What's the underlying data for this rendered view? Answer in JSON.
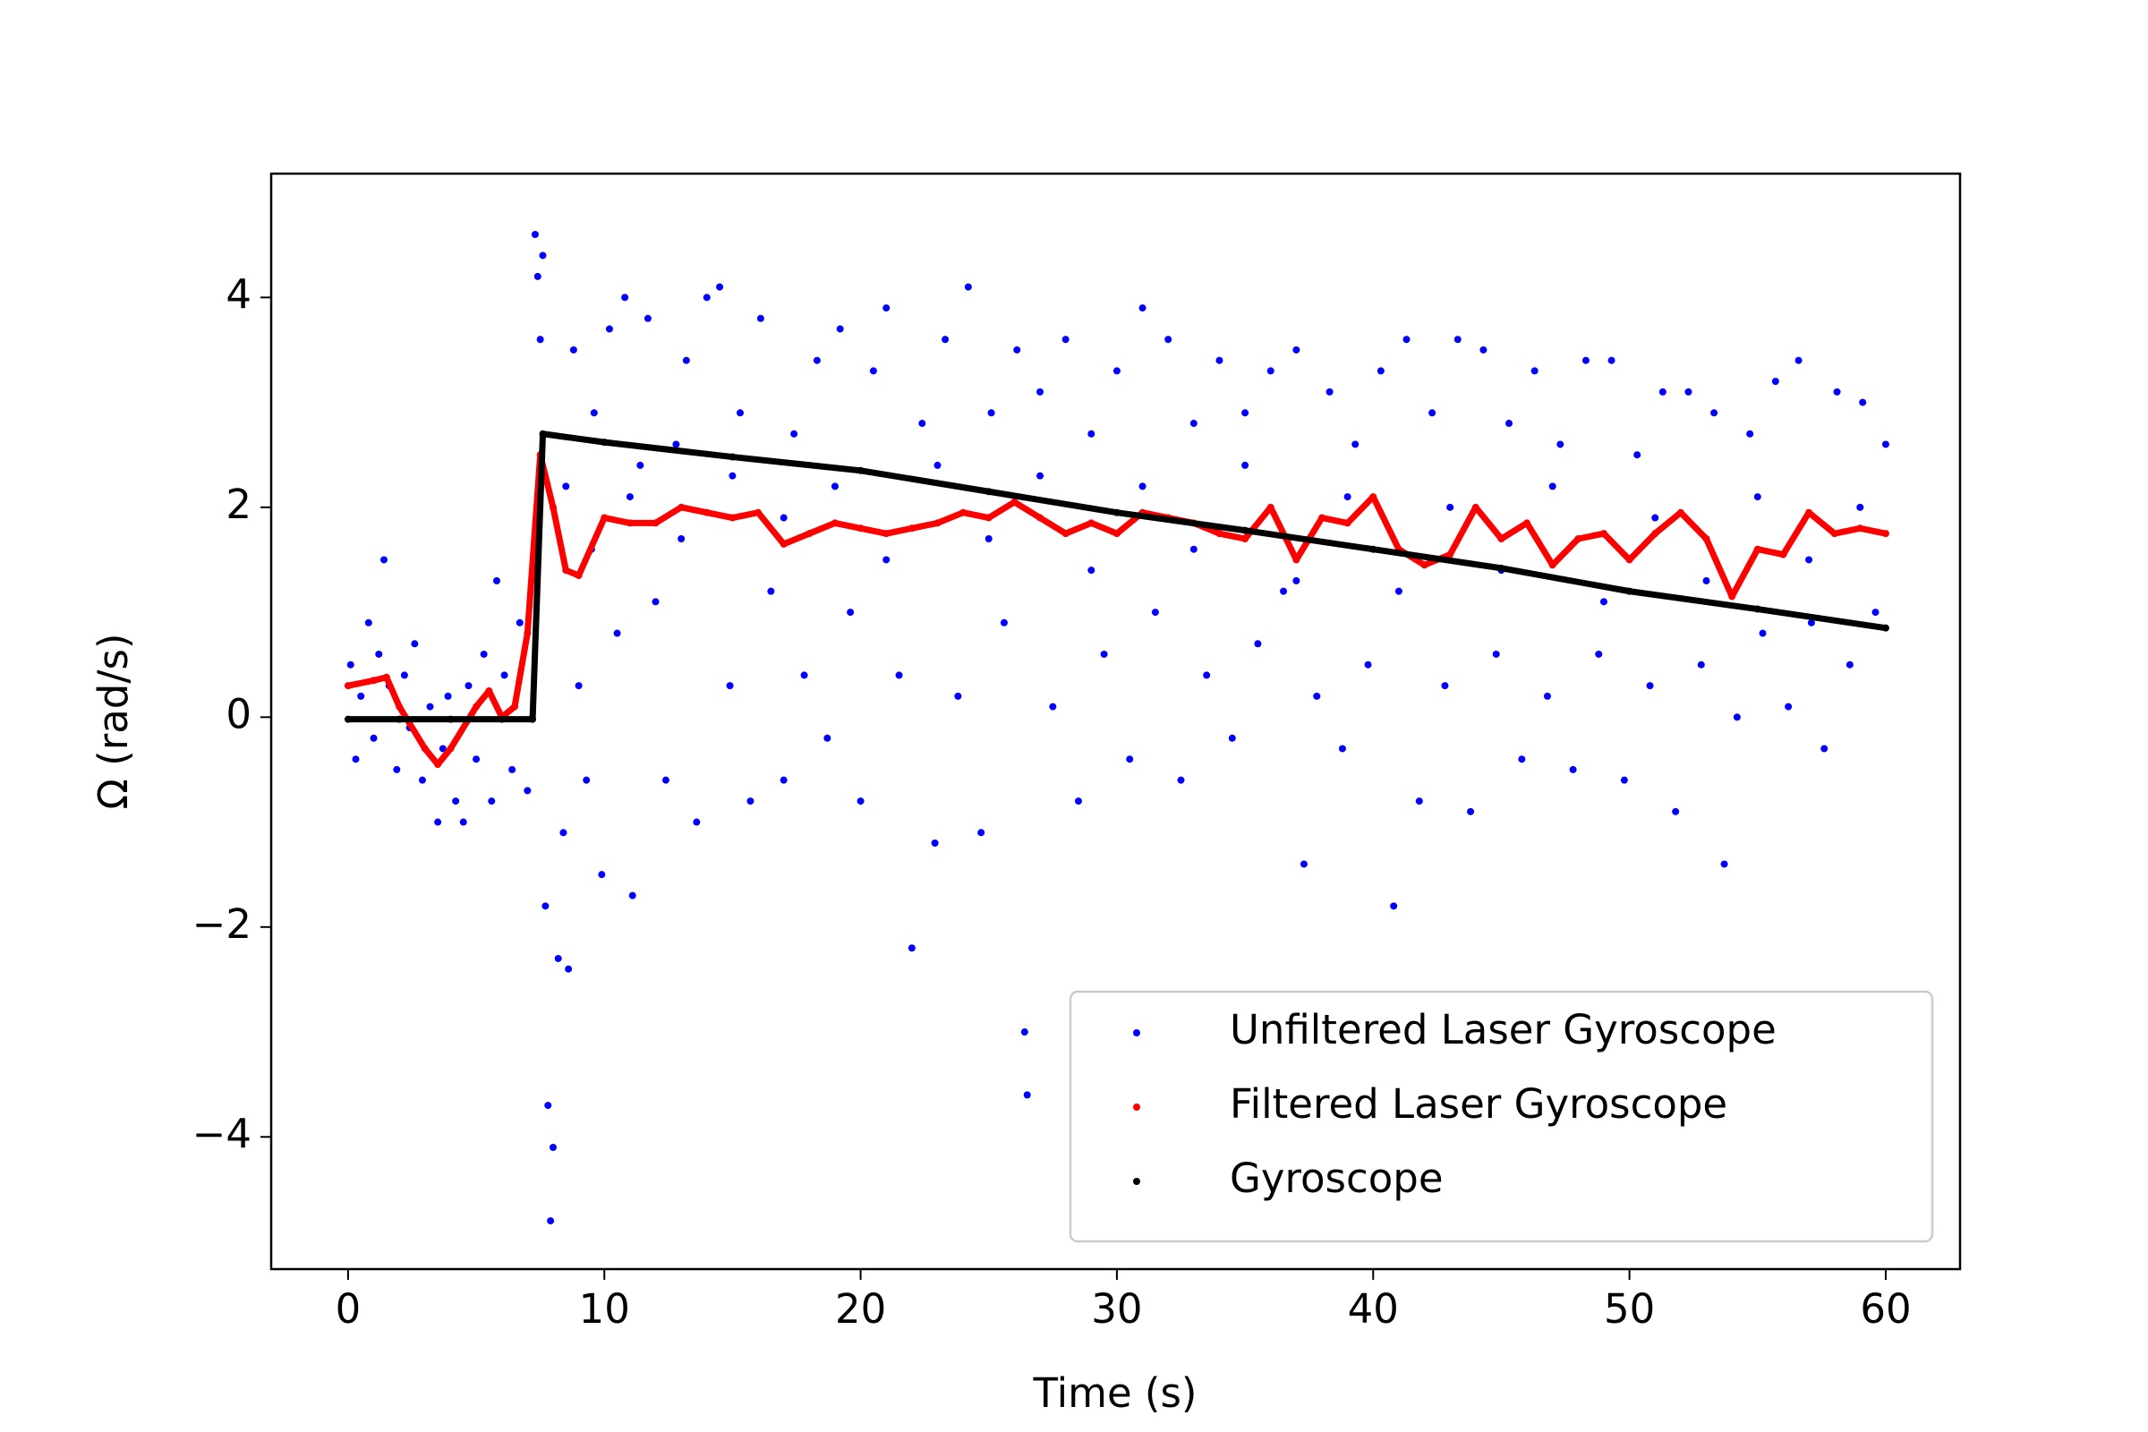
{
  "chart_data": {
    "type": "scatter",
    "xlabel": "Time (s)",
    "ylabel": "Ω (rad/s)",
    "xlim": [
      -3,
      62.9
    ],
    "ylim": [
      -5.26,
      5.18
    ],
    "xticks": [
      0,
      10,
      20,
      30,
      40,
      50,
      60
    ],
    "yticks": [
      {
        "value": -4,
        "label": "−4"
      },
      {
        "value": -2,
        "label": "−2"
      },
      0,
      2,
      4
    ],
    "legend": "lower right",
    "series": [
      {
        "name": "Unfiltered Laser Gyroscope",
        "color": "#0000ff",
        "x": [
          0.1,
          0.3,
          0.5,
          0.8,
          1.0,
          1.2,
          1.4,
          1.6,
          1.9,
          2.2,
          2.4,
          2.6,
          2.9,
          3.2,
          3.5,
          3.7,
          3.9,
          4.2,
          4.5,
          4.7,
          5.0,
          5.3,
          5.6,
          5.8,
          6.1,
          6.4,
          6.7,
          7.0,
          7.3,
          7.4,
          7.5,
          7.6,
          7.7,
          7.8,
          7.9,
          8.0,
          8.2,
          8.4,
          8.6,
          8.8,
          9.0,
          9.3,
          9.6,
          9.9,
          10.2,
          10.5,
          10.8,
          11.1,
          11.4,
          11.7,
          12.0,
          12.4,
          12.8,
          13.2,
          13.6,
          14.0,
          14.5,
          14.9,
          15.3,
          15.7,
          16.1,
          16.5,
          17.0,
          17.4,
          17.8,
          18.3,
          18.7,
          19.2,
          19.6,
          20.0,
          20.5,
          21.0,
          21.5,
          22.0,
          22.4,
          22.9,
          23.3,
          23.8,
          24.2,
          24.7,
          25.1,
          25.6,
          26.1,
          26.4,
          26.5,
          27.0,
          27.5,
          28.0,
          28.5,
          29.0,
          29.5,
          30.0,
          30.5,
          31.0,
          31.5,
          32.0,
          32.5,
          33.0,
          33.5,
          34.0,
          34.5,
          35.0,
          35.5,
          36.0,
          36.5,
          37.0,
          37.3,
          37.8,
          38.3,
          38.8,
          39.3,
          39.8,
          40.3,
          40.8,
          41.3,
          41.8,
          42.3,
          42.8,
          43.3,
          43.8,
          44.3,
          44.8,
          45.3,
          45.8,
          46.3,
          46.8,
          47.3,
          47.8,
          48.3,
          48.8,
          49.3,
          49.8,
          50.3,
          50.8,
          51.3,
          51.8,
          52.3,
          52.8,
          53.3,
          53.7,
          54.2,
          54.7,
          55.2,
          55.7,
          56.2,
          56.6,
          57.1,
          57.6,
          58.1,
          58.6,
          59.1,
          59.6,
          60.0,
          8.5,
          9.5,
          11.0,
          13.0,
          15.0,
          17.0,
          19.0,
          21.0,
          23.0,
          25.0,
          27.0,
          29.0,
          31.0,
          33.0,
          35.0,
          37.0,
          39.0,
          41.0,
          43.0,
          45.0,
          47.0,
          49.0,
          51.0,
          53.0,
          55.0,
          57.0,
          59.0
        ],
        "values": [
          0.5,
          -0.4,
          0.2,
          0.9,
          -0.2,
          0.6,
          1.5,
          0.3,
          -0.5,
          0.4,
          -0.1,
          0.7,
          -0.6,
          0.1,
          -1.0,
          -0.3,
          0.2,
          -0.8,
          -1.0,
          0.3,
          -0.4,
          0.6,
          -0.8,
          1.3,
          0.4,
          -0.5,
          0.9,
          -0.7,
          4.6,
          4.2,
          3.6,
          4.4,
          -1.8,
          -3.7,
          -4.8,
          -4.1,
          -2.3,
          -1.1,
          -2.4,
          3.5,
          0.3,
          -0.6,
          2.9,
          -1.5,
          3.7,
          0.8,
          4.0,
          -1.7,
          2.4,
          3.8,
          1.1,
          -0.6,
          2.6,
          3.4,
          -1.0,
          4.0,
          4.1,
          0.3,
          2.9,
          -0.8,
          3.8,
          1.2,
          -0.6,
          2.7,
          0.4,
          3.4,
          -0.2,
          3.7,
          1.0,
          -0.8,
          3.3,
          3.9,
          0.4,
          -2.2,
          2.8,
          -1.2,
          3.6,
          0.2,
          4.1,
          -1.1,
          2.9,
          0.9,
          3.5,
          -3.0,
          -3.6,
          3.1,
          0.1,
          3.6,
          -0.8,
          2.7,
          0.6,
          3.3,
          -0.4,
          3.9,
          1.0,
          3.6,
          -0.6,
          2.8,
          0.4,
          3.4,
          -0.2,
          2.9,
          0.7,
          3.3,
          1.2,
          3.5,
          -1.4,
          0.2,
          3.1,
          -0.3,
          2.6,
          0.5,
          3.3,
          -1.8,
          3.6,
          -0.8,
          2.9,
          0.3,
          3.6,
          -0.9,
          3.5,
          0.6,
          2.8,
          -0.4,
          3.3,
          0.2,
          2.6,
          -0.5,
          3.4,
          0.6,
          3.4,
          -0.6,
          2.5,
          0.3,
          3.1,
          -0.9,
          3.1,
          0.5,
          2.9,
          -1.4,
          0.0,
          2.7,
          0.8,
          3.2,
          0.1,
          3.4,
          0.9,
          -0.3,
          3.1,
          0.5,
          3.0,
          1.0,
          2.6,
          2.2,
          1.6,
          2.1,
          1.7,
          2.3,
          1.9,
          2.2,
          1.5,
          2.4,
          1.7,
          2.3,
          1.4,
          2.2,
          1.6,
          2.4,
          1.3,
          2.1,
          1.2,
          2.0,
          1.4,
          2.2,
          1.1,
          1.9,
          1.3,
          2.1,
          1.5,
          2.0
        ]
      },
      {
        "name": "Filtered Laser Gyroscope",
        "color": "#ff0000",
        "x": [
          0,
          1,
          1.5,
          2,
          3,
          3.5,
          4,
          5,
          5.5,
          6,
          6.5,
          7,
          7.5,
          8,
          8.5,
          9,
          10,
          11,
          12,
          13,
          14,
          15,
          16,
          17,
          18,
          19,
          20,
          21,
          22,
          23,
          24,
          25,
          26,
          27,
          28,
          29,
          30,
          31,
          32,
          33,
          34,
          35,
          36,
          37,
          38,
          39,
          40,
          41,
          42,
          43,
          44,
          45,
          46,
          47,
          48,
          49,
          50,
          51,
          52,
          53,
          54,
          55,
          56,
          57,
          58,
          59,
          60
        ],
        "values": [
          0.3,
          0.35,
          0.38,
          0.1,
          -0.3,
          -0.45,
          -0.3,
          0.1,
          0.25,
          0.0,
          0.1,
          0.8,
          2.5,
          2.0,
          1.4,
          1.35,
          1.9,
          1.85,
          1.85,
          2.0,
          1.95,
          1.9,
          1.95,
          1.65,
          1.75,
          1.85,
          1.8,
          1.75,
          1.8,
          1.85,
          1.95,
          1.9,
          2.05,
          1.9,
          1.75,
          1.85,
          1.75,
          1.95,
          1.9,
          1.85,
          1.75,
          1.7,
          2.0,
          1.5,
          1.9,
          1.85,
          2.1,
          1.6,
          1.45,
          1.55,
          2.0,
          1.7,
          1.85,
          1.45,
          1.7,
          1.75,
          1.5,
          1.75,
          1.95,
          1.7,
          1.15,
          1.6,
          1.55,
          1.95,
          1.75,
          1.8,
          1.75
        ]
      },
      {
        "name": "Gyroscope",
        "color": "#000000",
        "x": [
          0,
          2,
          4,
          6,
          7.2,
          7.6,
          10,
          15,
          20,
          25,
          30,
          35,
          40,
          45,
          50,
          55,
          60
        ],
        "values": [
          -0.02,
          -0.02,
          -0.02,
          -0.02,
          -0.02,
          2.7,
          2.62,
          2.48,
          2.35,
          2.15,
          1.95,
          1.78,
          1.6,
          1.42,
          1.2,
          1.03,
          0.85
        ]
      }
    ]
  }
}
